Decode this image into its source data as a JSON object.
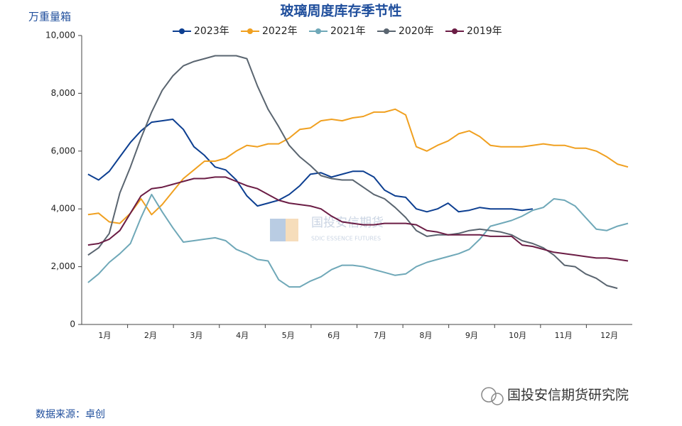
{
  "chart_data": {
    "type": "line",
    "title": "玻璃周度库存季节性",
    "y_label": "万重量箱",
    "source": "数据来源：卓创",
    "watermark": "国投安信期货",
    "watermark_en": "SDIC ESSENCE FUTURES",
    "brand": "国投安信期货研究院",
    "x": [
      1,
      2,
      3,
      4,
      5,
      6,
      7,
      8,
      9,
      10,
      11,
      12,
      13,
      14,
      15,
      16,
      17,
      18,
      19,
      20,
      21,
      22,
      23,
      24,
      25,
      26,
      27,
      28,
      29,
      30,
      31,
      32,
      33,
      34,
      35,
      36,
      37,
      38,
      39,
      40,
      41,
      42,
      43,
      44,
      45,
      46,
      47,
      48,
      49,
      50,
      51,
      52
    ],
    "xlim": [
      0.4,
      52.4
    ],
    "xticks": [
      {
        "value": 2.57,
        "label": "1月"
      },
      {
        "value": 6.9,
        "label": "2月"
      },
      {
        "value": 11.23,
        "label": "3月"
      },
      {
        "value": 15.57,
        "label": "4月"
      },
      {
        "value": 19.9,
        "label": "5月"
      },
      {
        "value": 24.23,
        "label": "6月"
      },
      {
        "value": 28.57,
        "label": "7月"
      },
      {
        "value": 32.9,
        "label": "8月"
      },
      {
        "value": 37.23,
        "label": "9月"
      },
      {
        "value": 41.57,
        "label": "10月"
      },
      {
        "value": 45.9,
        "label": "11月"
      },
      {
        "value": 50.23,
        "label": "12月"
      }
    ],
    "ylim": [
      0,
      10000
    ],
    "yticks": [
      0,
      {
        "value": 2000,
        "label": "2,000"
      },
      {
        "value": 4000,
        "label": "4,000"
      },
      {
        "value": 6000,
        "label": "6,000"
      },
      {
        "value": 8000,
        "label": "8,000"
      },
      {
        "value": 10000,
        "label": "10,000"
      }
    ],
    "series": [
      {
        "name": "2023年",
        "color": "#0d3f91",
        "values": [
          5200,
          5000,
          5300,
          5800,
          6300,
          6700,
          7000,
          7050,
          7100,
          6750,
          6150,
          5850,
          5450,
          5350,
          5000,
          4450,
          4100,
          4200,
          4300,
          4500,
          4800,
          5200,
          5250,
          5100,
          5200,
          5300,
          5300,
          5100,
          4650,
          4450,
          4400,
          4000,
          3900,
          4000,
          4200,
          3900,
          3950,
          4050,
          4000,
          4000,
          4000,
          3950,
          4000,
          null,
          null,
          null,
          null,
          null,
          null,
          null,
          null,
          null
        ]
      },
      {
        "name": "2022年",
        "color": "#f0a020",
        "values": [
          3800,
          3850,
          3550,
          3500,
          3850,
          4350,
          3800,
          4150,
          4600,
          5050,
          5350,
          5650,
          5650,
          5750,
          6000,
          6200,
          6150,
          6250,
          6250,
          6450,
          6750,
          6800,
          7050,
          7100,
          7050,
          7150,
          7200,
          7350,
          7350,
          7450,
          7250,
          6150,
          6000,
          6200,
          6350,
          6600,
          6700,
          6500,
          6200,
          6150,
          6150,
          6150,
          6200,
          6250,
          6200,
          6200,
          6100,
          6100,
          6000,
          5800,
          5550,
          5450
        ]
      },
      {
        "name": "2021年",
        "color": "#6fa8b8",
        "values": [
          1450,
          1750,
          2150,
          2450,
          2800,
          3700,
          4500,
          3900,
          3350,
          2850,
          2900,
          2950,
          3000,
          2900,
          2600,
          2450,
          2250,
          2200,
          1550,
          1300,
          1300,
          1500,
          1650,
          1900,
          2050,
          2050,
          2000,
          1900,
          1800,
          1700,
          1750,
          2000,
          2150,
          2250,
          2350,
          2450,
          2600,
          2950,
          3400,
          3500,
          3600,
          3750,
          3950,
          4050,
          4350,
          4300,
          4100,
          3700,
          3300,
          3250,
          3400,
          3500
        ]
      },
      {
        "name": "2020年",
        "color": "#5a6570",
        "values": [
          2400,
          2650,
          3150,
          4550,
          5450,
          6450,
          7350,
          8100,
          8600,
          8950,
          9100,
          9200,
          9300,
          9300,
          9300,
          9200,
          8250,
          7450,
          6850,
          6200,
          5800,
          5500,
          5150,
          5050,
          5000,
          5000,
          4750,
          4500,
          4350,
          4050,
          3700,
          3250,
          3050,
          3100,
          3100,
          3150,
          3250,
          3300,
          3250,
          3200,
          3100,
          2900,
          2800,
          2650,
          2400,
          2050,
          2000,
          1750,
          1600,
          1350,
          1250,
          null
        ]
      },
      {
        "name": "2019年",
        "color": "#6b1d45",
        "values": [
          2750,
          2800,
          2950,
          3250,
          3850,
          4450,
          4700,
          4750,
          4850,
          4950,
          5050,
          5050,
          5100,
          5100,
          4950,
          4800,
          4700,
          4500,
          4300,
          4200,
          4150,
          4100,
          4000,
          3750,
          3550,
          3500,
          3450,
          3450,
          3500,
          3500,
          3500,
          3450,
          3250,
          3200,
          3100,
          3100,
          3100,
          3100,
          3050,
          3050,
          3050,
          2750,
          2700,
          2600,
          2500,
          2450,
          2400,
          2350,
          2300,
          2300,
          2250,
          2200
        ]
      }
    ]
  }
}
